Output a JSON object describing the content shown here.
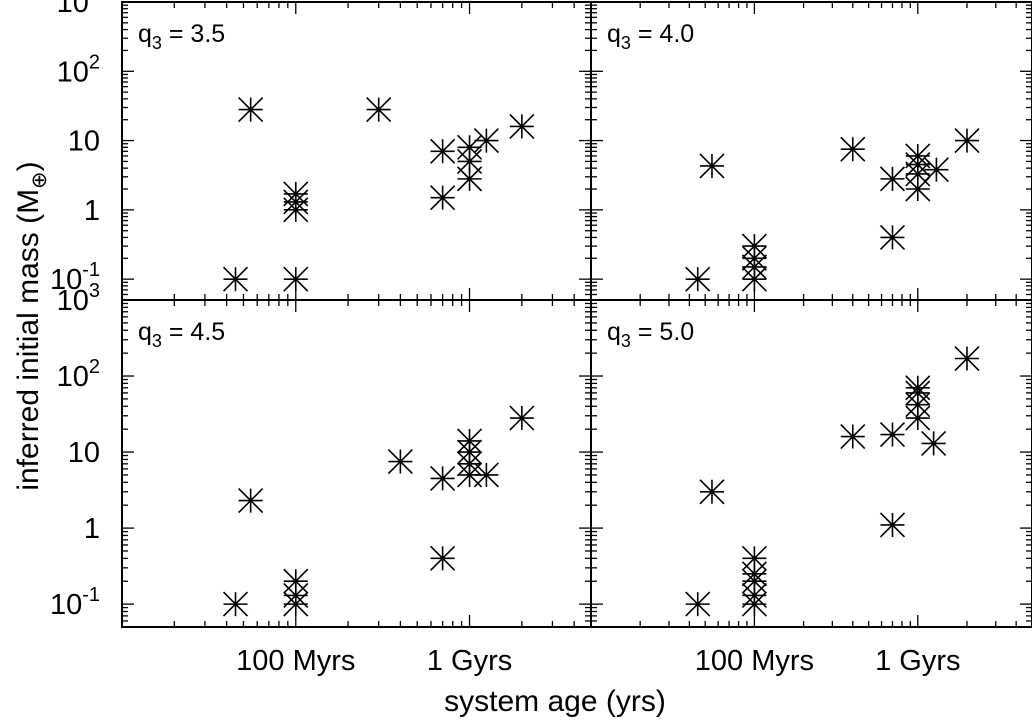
{
  "chart_data": {
    "type": "scatter",
    "xlabel": "system age (yrs)",
    "ylabel": "inferred initial mass (M",
    "ylabel_sub": "⊕",
    "ylabel_close": ")",
    "x_scale": "log",
    "y_scale": "log",
    "xlim": [
      10000000,
      5000000000
    ],
    "ylim": [
      0.05,
      1000
    ],
    "x_tick_labels": [
      {
        "value": 100000000,
        "label": "100 Myrs"
      },
      {
        "value": 1000000000,
        "label": "1 Gyrs"
      }
    ],
    "y_tick_labels": [
      {
        "value": 0.1,
        "base": "10",
        "exp": "-1"
      },
      {
        "value": 1,
        "base": "1",
        "exp": ""
      },
      {
        "value": 10,
        "base": "10",
        "exp": ""
      },
      {
        "value": 100,
        "base": "10",
        "exp": "2"
      },
      {
        "value": 1000,
        "base": "10",
        "exp": "3"
      }
    ],
    "marker": "asterisk",
    "grid": false,
    "panels": [
      {
        "q_label": "q",
        "q_sub": "3",
        "q_value": " = 3.5",
        "points": [
          {
            "x": 45000000,
            "y": 0.1
          },
          {
            "x": 55000000,
            "y": 28
          },
          {
            "x": 100000000,
            "y": 0.1
          },
          {
            "x": 100000000,
            "y": 1.0
          },
          {
            "x": 100000000,
            "y": 1.3
          },
          {
            "x": 100000000,
            "y": 1.7
          },
          {
            "x": 300000000,
            "y": 28
          },
          {
            "x": 700000000,
            "y": 1.5
          },
          {
            "x": 700000000,
            "y": 7
          },
          {
            "x": 1000000000,
            "y": 2.8
          },
          {
            "x": 1000000000,
            "y": 5
          },
          {
            "x": 1000000000,
            "y": 8
          },
          {
            "x": 1250000000,
            "y": 10
          },
          {
            "x": 2000000000,
            "y": 16
          }
        ]
      },
      {
        "q_label": "q",
        "q_sub": "3",
        "q_value": " = 4.0",
        "points": [
          {
            "x": 45000000,
            "y": 0.1
          },
          {
            "x": 55000000,
            "y": 4.3
          },
          {
            "x": 100000000,
            "y": 0.1
          },
          {
            "x": 100000000,
            "y": 0.15
          },
          {
            "x": 100000000,
            "y": 0.2
          },
          {
            "x": 100000000,
            "y": 0.3
          },
          {
            "x": 400000000,
            "y": 7.5
          },
          {
            "x": 700000000,
            "y": 0.4
          },
          {
            "x": 700000000,
            "y": 2.8
          },
          {
            "x": 1000000000,
            "y": 2.0
          },
          {
            "x": 1000000000,
            "y": 3.3
          },
          {
            "x": 1000000000,
            "y": 4.5
          },
          {
            "x": 1000000000,
            "y": 6
          },
          {
            "x": 1300000000,
            "y": 3.8
          },
          {
            "x": 2000000000,
            "y": 10
          }
        ]
      },
      {
        "q_label": "q",
        "q_sub": "3",
        "q_value": " = 4.5",
        "points": [
          {
            "x": 45000000,
            "y": 0.1
          },
          {
            "x": 55000000,
            "y": 2.3
          },
          {
            "x": 100000000,
            "y": 0.1
          },
          {
            "x": 100000000,
            "y": 0.13
          },
          {
            "x": 100000000,
            "y": 0.2
          },
          {
            "x": 400000000,
            "y": 7.5
          },
          {
            "x": 700000000,
            "y": 0.4
          },
          {
            "x": 700000000,
            "y": 4.5
          },
          {
            "x": 1000000000,
            "y": 5
          },
          {
            "x": 1000000000,
            "y": 7
          },
          {
            "x": 1000000000,
            "y": 10
          },
          {
            "x": 1000000000,
            "y": 14
          },
          {
            "x": 1250000000,
            "y": 5
          },
          {
            "x": 2000000000,
            "y": 28
          }
        ]
      },
      {
        "q_label": "q",
        "q_sub": "3",
        "q_value": " = 5.0",
        "points": [
          {
            "x": 45000000,
            "y": 0.1
          },
          {
            "x": 55000000,
            "y": 3.0
          },
          {
            "x": 100000000,
            "y": 0.1
          },
          {
            "x": 100000000,
            "y": 0.13
          },
          {
            "x": 100000000,
            "y": 0.2
          },
          {
            "x": 100000000,
            "y": 0.25
          },
          {
            "x": 100000000,
            "y": 0.4
          },
          {
            "x": 400000000,
            "y": 16
          },
          {
            "x": 700000000,
            "y": 1.1
          },
          {
            "x": 700000000,
            "y": 17
          },
          {
            "x": 1000000000,
            "y": 28
          },
          {
            "x": 1000000000,
            "y": 42
          },
          {
            "x": 1000000000,
            "y": 60
          },
          {
            "x": 1000000000,
            "y": 70
          },
          {
            "x": 1250000000,
            "y": 13
          },
          {
            "x": 2000000000,
            "y": 170
          }
        ]
      }
    ]
  }
}
